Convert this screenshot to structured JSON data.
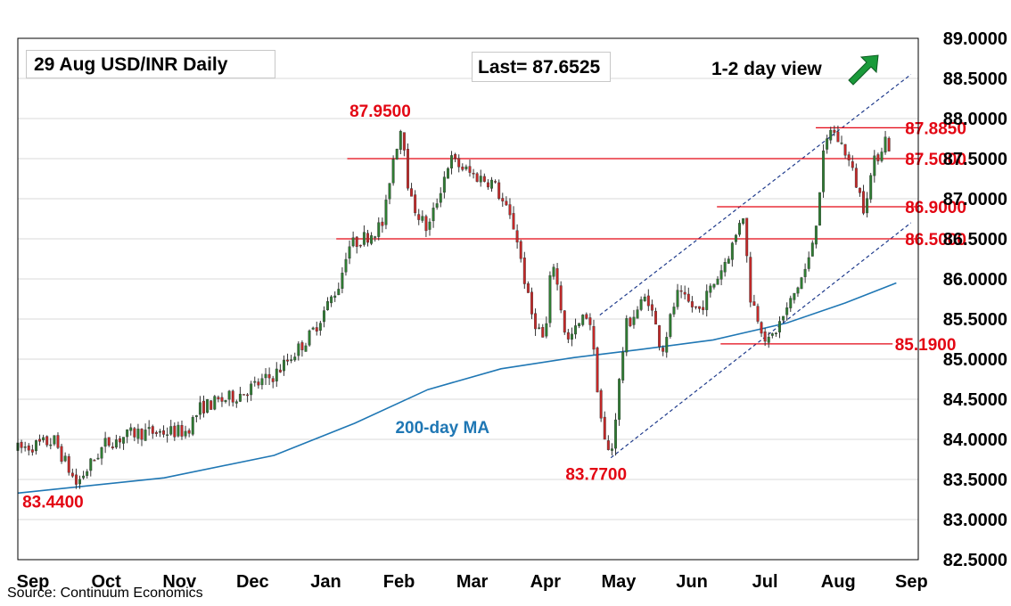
{
  "chart_data": {
    "type": "candlestick",
    "title": "29 Aug  USD/INR  Daily",
    "last_label": "Last= 87.6525",
    "view_label": "1-2 day view",
    "view_direction": "up",
    "arrow_color": "#1a9a3a",
    "source": "Source: Continuum Economics",
    "y_range": [
      82.5,
      89.0
    ],
    "y_ticks": [
      {
        "value": 82.5,
        "label": "82.5000"
      },
      {
        "value": 83.0,
        "label": "83.0000"
      },
      {
        "value": 83.5,
        "label": "83.5000"
      },
      {
        "value": 84.0,
        "label": "84.0000"
      },
      {
        "value": 84.5,
        "label": "84.5000"
      },
      {
        "value": 85.0,
        "label": "85.0000"
      },
      {
        "value": 85.5,
        "label": "85.5000"
      },
      {
        "value": 86.0,
        "label": "86.0000"
      },
      {
        "value": 86.5,
        "label": "86.5000"
      },
      {
        "value": 87.0,
        "label": "87.0000"
      },
      {
        "value": 87.5,
        "label": "87.5000"
      },
      {
        "value": 88.0,
        "label": "88.0000"
      },
      {
        "value": 88.5,
        "label": "88.5000"
      },
      {
        "value": 89.0,
        "label": "89.0000"
      }
    ],
    "x_range": [
      0,
      12.3
    ],
    "x_ticks": [
      {
        "t": 0.0,
        "label": "Sep"
      },
      {
        "t": 1.0,
        "label": "Oct"
      },
      {
        "t": 2.0,
        "label": "Nov"
      },
      {
        "t": 3.0,
        "label": "Dec"
      },
      {
        "t": 4.0,
        "label": "Jan"
      },
      {
        "t": 5.0,
        "label": "Feb"
      },
      {
        "t": 6.0,
        "label": "Mar"
      },
      {
        "t": 7.0,
        "label": "Apr"
      },
      {
        "t": 8.0,
        "label": "May"
      },
      {
        "t": 9.0,
        "label": "Jun"
      },
      {
        "t": 10.0,
        "label": "Jul"
      },
      {
        "t": 11.0,
        "label": "Aug"
      },
      {
        "t": 12.0,
        "label": "Sep"
      }
    ],
    "grid": "horizontal",
    "colors": {
      "up": "#2e7d32",
      "down": "#c62828",
      "wick": "#333333",
      "ma": "#1f77b4",
      "levels": "#e30613",
      "channel": "#1f3b8c",
      "grid": "#d9d9d9"
    },
    "anchors": [
      [
        0.0,
        83.88
      ],
      [
        0.5,
        83.98
      ],
      [
        0.8,
        83.44
      ],
      [
        1.2,
        83.95
      ],
      [
        1.6,
        84.08
      ],
      [
        2.3,
        84.1
      ],
      [
        2.5,
        84.4
      ],
      [
        3.0,
        84.55
      ],
      [
        3.5,
        84.8
      ],
      [
        4.0,
        85.3
      ],
      [
        4.4,
        85.95
      ],
      [
        4.5,
        86.4
      ],
      [
        4.8,
        86.55
      ],
      [
        5.0,
        86.7
      ],
      [
        5.1,
        87.4
      ],
      [
        5.25,
        87.95
      ],
      [
        5.35,
        87.0
      ],
      [
        5.6,
        86.6
      ],
      [
        5.9,
        87.5
      ],
      [
        6.2,
        87.3
      ],
      [
        6.5,
        87.2
      ],
      [
        6.8,
        86.6
      ],
      [
        7.0,
        85.6
      ],
      [
        7.2,
        85.2
      ],
      [
        7.3,
        86.3
      ],
      [
        7.5,
        85.2
      ],
      [
        7.8,
        85.6
      ],
      [
        8.0,
        84.0
      ],
      [
        8.1,
        83.77
      ],
      [
        8.3,
        85.4
      ],
      [
        8.6,
        85.8
      ],
      [
        8.8,
        85.1
      ],
      [
        9.0,
        85.8
      ],
      [
        9.3,
        85.6
      ],
      [
        9.6,
        86.1
      ],
      [
        9.8,
        86.5
      ],
      [
        9.9,
        86.9
      ],
      [
        10.0,
        85.8
      ],
      [
        10.2,
        85.3
      ],
      [
        10.25,
        85.19
      ],
      [
        10.5,
        85.6
      ],
      [
        10.8,
        86.2
      ],
      [
        10.9,
        86.7
      ],
      [
        11.0,
        87.5
      ],
      [
        11.1,
        87.885
      ],
      [
        11.3,
        87.6
      ],
      [
        11.45,
        87.2
      ],
      [
        11.55,
        86.9
      ],
      [
        11.7,
        87.45
      ],
      [
        11.85,
        87.75
      ],
      [
        11.9,
        87.6525
      ]
    ],
    "moving_average": {
      "name": "200-day MA",
      "points": [
        [
          0.0,
          83.33
        ],
        [
          2.0,
          83.52
        ],
        [
          3.5,
          83.8
        ],
        [
          4.6,
          84.2
        ],
        [
          5.6,
          84.62
        ],
        [
          6.6,
          84.88
        ],
        [
          7.6,
          85.02
        ],
        [
          8.5,
          85.12
        ],
        [
          9.5,
          85.24
        ],
        [
          10.5,
          85.45
        ],
        [
          11.3,
          85.7
        ],
        [
          12.0,
          85.95
        ]
      ]
    },
    "levels": [
      {
        "value": 87.95,
        "label": "87.9500",
        "x_start": 5.25,
        "x_end": 5.25,
        "label_t": 4.95,
        "label_y": 88.1,
        "line": false
      },
      {
        "value": 87.885,
        "label": "87.8850",
        "x_start": 10.9,
        "x_end": 12.3,
        "label_t": 12.12,
        "label_y": 87.885,
        "line": true
      },
      {
        "value": 87.5,
        "label": "87.5000",
        "x_start": 4.5,
        "x_end": 12.3,
        "label_t": 12.12,
        "label_y": 87.5,
        "line": true
      },
      {
        "value": 86.9,
        "label": "86.9000",
        "x_start": 9.55,
        "x_end": 12.3,
        "label_t": 12.12,
        "label_y": 86.9,
        "line": true
      },
      {
        "value": 86.5,
        "label": "86.5000",
        "x_start": 4.35,
        "x_end": 12.3,
        "label_t": 12.12,
        "label_y": 86.5,
        "line": true
      },
      {
        "value": 85.19,
        "label": "85.1900",
        "x_start": 9.6,
        "x_end": 11.95,
        "label_t": 11.98,
        "label_y": 85.19,
        "line": true
      },
      {
        "value": 83.77,
        "label": "83.7700",
        "x_start": 8.1,
        "x_end": 8.1,
        "label_t": 7.9,
        "label_y": 83.57,
        "line": false
      },
      {
        "value": 83.44,
        "label": "83.4400",
        "x_start": 0.8,
        "x_end": 0.8,
        "label_t": 0.48,
        "label_y": 83.23,
        "line": false
      }
    ],
    "channel": {
      "upper": [
        [
          7.95,
          85.55
        ],
        [
          12.2,
          88.55
        ]
      ],
      "lower": [
        [
          8.1,
          83.77
        ],
        [
          12.2,
          86.7
        ]
      ]
    },
    "annotations": [
      {
        "text": "200-day MA",
        "t": 5.8,
        "y": 84.08,
        "type": "ma"
      }
    ]
  }
}
